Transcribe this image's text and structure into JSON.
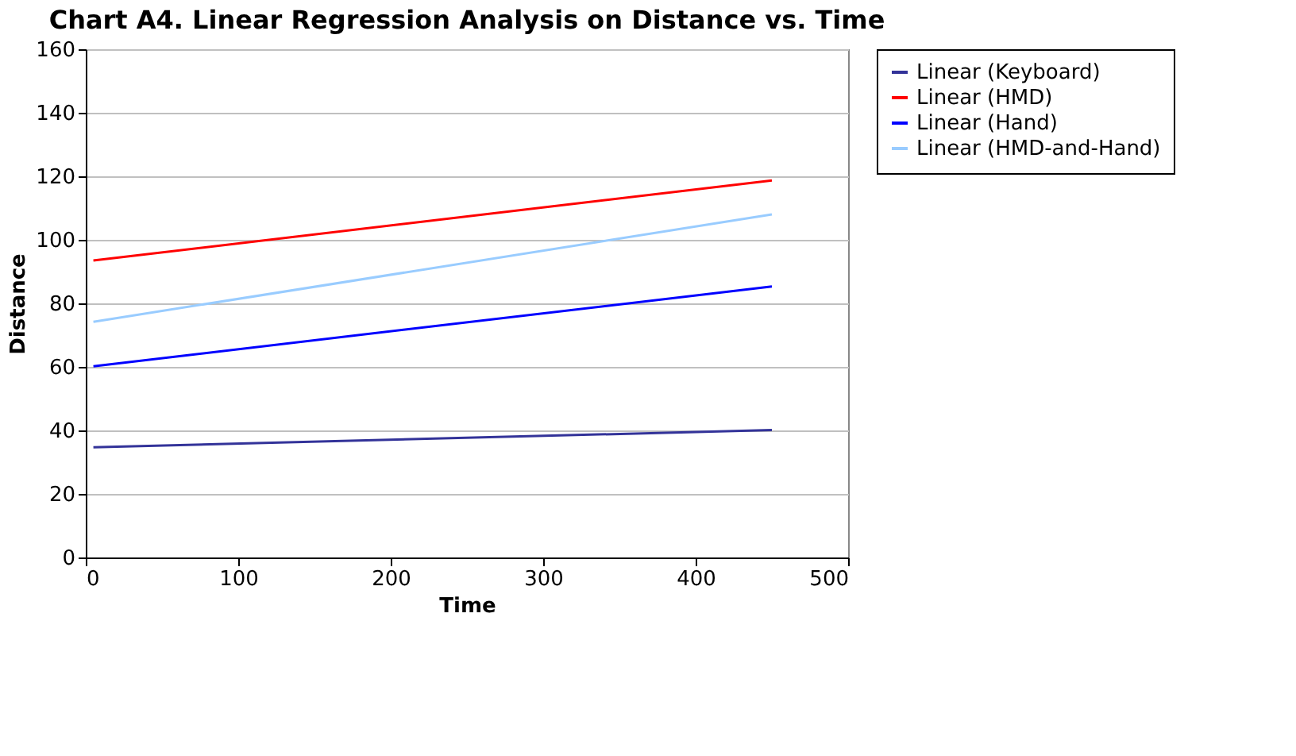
{
  "chart_data": {
    "type": "line",
    "title": "Chart A4. Linear Regression Analysis on Distance vs. Time",
    "xlabel": "Time",
    "ylabel": "Distance",
    "x": [
      5,
      450
    ],
    "series": [
      {
        "name": "Linear (Keyboard)",
        "color": "#333399",
        "values": [
          34.7,
          40.1
        ]
      },
      {
        "name": "Linear (HMD)",
        "color": "#ff0000",
        "values": [
          93.5,
          118.7
        ]
      },
      {
        "name": "Linear (Hand)",
        "color": "#0000ff",
        "values": [
          60.2,
          85.3
        ]
      },
      {
        "name": "Linear (HMD-and-Hand)",
        "color": "#99ccff",
        "values": [
          74.2,
          108
        ]
      }
    ],
    "xlim": [
      0,
      500
    ],
    "xticks": [
      0,
      100,
      200,
      300,
      400,
      500
    ],
    "ylim": [
      0,
      160
    ],
    "yticks": [
      0,
      20,
      40,
      60,
      80,
      100,
      120,
      140,
      160
    ],
    "grid": "y",
    "legend": "right",
    "marker": "none",
    "line_style": "solid"
  }
}
